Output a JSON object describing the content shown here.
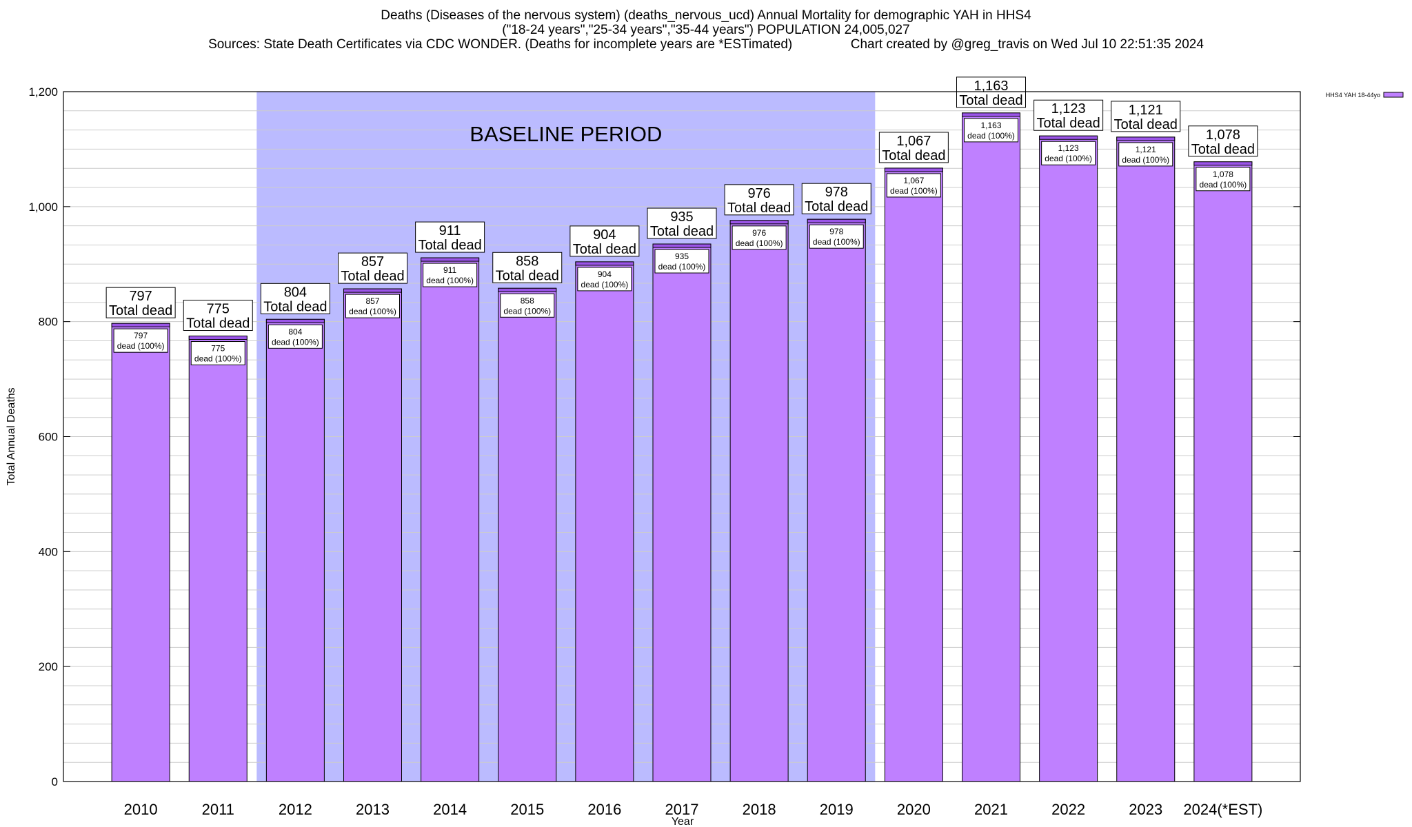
{
  "title_lines": [
    "Deaths (Diseases of the nervous system) (deaths_nervous_ucd) Annual Mortality for demographic YAH in HHS4",
    "(\"18-24 years\",\"25-34 years\",\"35-44 years\") POPULATION 24,005,027",
    "Sources: State Death Certificates via CDC WONDER. (Deaths for incomplete years are *ESTimated)                Chart created by @greg_travis on Wed Jul 10 22:51:35 2024"
  ],
  "chart_data": {
    "type": "bar",
    "categories": [
      "2010",
      "2011",
      "2012",
      "2013",
      "2014",
      "2015",
      "2016",
      "2017",
      "2018",
      "2019",
      "2020",
      "2021",
      "2022",
      "2023",
      "2024(*EST)"
    ],
    "series": [
      {
        "name": "HHS4 YAH 18-44yo",
        "values": [
          797,
          775,
          804,
          857,
          911,
          858,
          904,
          935,
          976,
          978,
          1067,
          1163,
          1123,
          1121,
          1078
        ]
      }
    ],
    "value_labels": [
      "797",
      "775",
      "804",
      "857",
      "911",
      "858",
      "904",
      "935",
      "976",
      "978",
      "1,067",
      "1,163",
      "1,123",
      "1,121",
      "1,078"
    ],
    "total_label_suffix": "Total dead",
    "inner_label_suffix": "dead (100%)",
    "xlabel": "Year",
    "ylabel": "Total Annual Deaths",
    "ylim": [
      0,
      1200
    ],
    "y_ticks": [
      0,
      200,
      400,
      600,
      800,
      1000,
      1200
    ],
    "y_tick_labels": [
      "0",
      "200",
      "400",
      "600",
      "800",
      "1,000",
      "1,200"
    ],
    "baseline_label": "BASELINE PERIOD",
    "baseline_range": [
      "2012",
      "2019"
    ],
    "grid": true,
    "legend_position": "top-right",
    "colors": {
      "bar_fill": "#bf80ff",
      "bar_cap": "#9b55e8",
      "baseline_fill": "#bbbbff",
      "grid": "#cccccc"
    }
  }
}
